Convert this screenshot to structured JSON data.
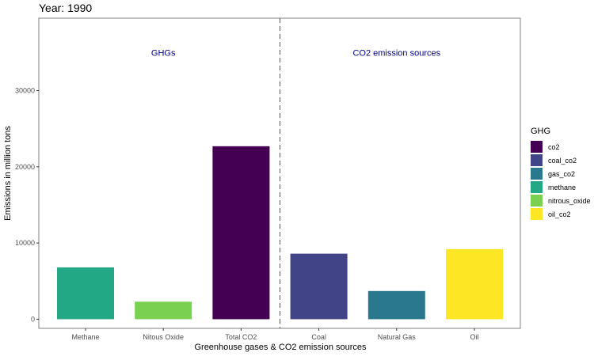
{
  "chart_data": {
    "type": "bar",
    "title": "Year: 1990",
    "xlabel": "Greenhouse gases & CO2 emission sources",
    "ylabel": "Emissions in million tons",
    "ylim": [
      -1200,
      39500
    ],
    "yticks": [
      0,
      10000,
      20000,
      30000
    ],
    "grid": false,
    "categories": [
      "Methane",
      "Nitous Oxide",
      "Total CO2",
      "Coal",
      "Natural Gas",
      "Oil"
    ],
    "values": [
      6800,
      2300,
      22700,
      8600,
      3700,
      9200
    ],
    "bar_groups": [
      "methane",
      "nitrous_oxide",
      "co2",
      "coal_co2",
      "gas_co2",
      "oil_co2"
    ],
    "divider_after_category": "Total CO2",
    "annotations": [
      {
        "text": "GHGs",
        "x_between": [
          "Methane",
          "Total CO2"
        ],
        "y": 35000
      },
      {
        "text": "CO2 emission sources",
        "x_between": [
          "Coal",
          "Oil"
        ],
        "y": 35000
      }
    ],
    "legend": {
      "title": "GHG",
      "position": "right",
      "entries": [
        {
          "label": "co2",
          "color": "#440154"
        },
        {
          "label": "coal_co2",
          "color": "#414487"
        },
        {
          "label": "gas_co2",
          "color": "#2A788E"
        },
        {
          "label": "methane",
          "color": "#22A884"
        },
        {
          "label": "nitrous_oxide",
          "color": "#7AD151"
        },
        {
          "label": "oil_co2",
          "color": "#FDE725"
        }
      ]
    },
    "colors": {
      "divider": "#E41A1C",
      "annotation": "#000080",
      "panel_border": "#7F7F7F",
      "axis_text": "#4D4D4D"
    }
  }
}
